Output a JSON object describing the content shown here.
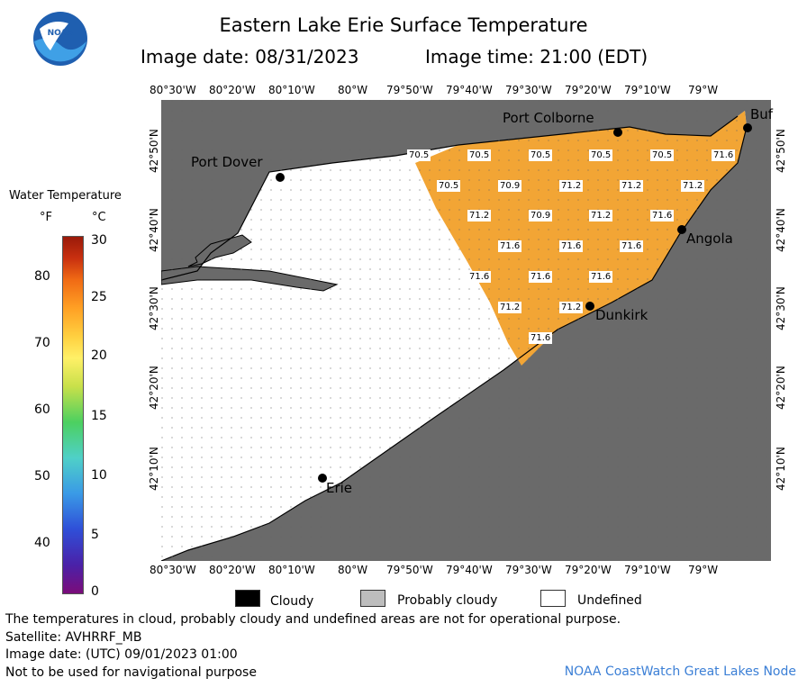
{
  "header": {
    "title": "Eastern Lake Erie Surface Temperature",
    "image_date": "Image date: 08/31/2023",
    "image_time": "Image time: 21:00 (EDT)",
    "logo_text": "NOAA"
  },
  "legend": {
    "title": "Water Temperature",
    "unit_f": "°F",
    "unit_c": "°C",
    "f_ticks": [
      "80",
      "70",
      "60",
      "50",
      "40"
    ],
    "c_ticks": [
      "30",
      "25",
      "20",
      "15",
      "10",
      "5",
      "0"
    ],
    "colormap": "purple-blue-cyan-green-yellow-orange-red"
  },
  "map": {
    "lon_labels": [
      "80°30'W",
      "80°20'W",
      "80°10'W",
      "80°W",
      "79°50'W",
      "79°40'W",
      "79°30'W",
      "79°20'W",
      "79°10'W",
      "79°W"
    ],
    "lat_labels": [
      "42°50'N",
      "42°40'N",
      "42°30'N",
      "42°20'N",
      "42°10'N"
    ],
    "cities": [
      {
        "name": "Port Colborne"
      },
      {
        "name": "Port Dover"
      },
      {
        "name": "Buf"
      },
      {
        "name": "Angola"
      },
      {
        "name": "Dunkirk"
      },
      {
        "name": "Erie"
      }
    ],
    "temperature_labels": [
      "70.5",
      "70.5",
      "70.5",
      "70.5",
      "70.5",
      "71.6",
      "70.5",
      "70.9",
      "71.2",
      "71.2",
      "71.2",
      "71.2",
      "70.9",
      "71.2",
      "71.6",
      "71.6",
      "71.6",
      "71.6",
      "71.6",
      "71.6",
      "71.6",
      "71.2",
      "71.2",
      "71.6"
    ],
    "colors": {
      "land": "#6a6a6a",
      "water_warm": "#f2a535",
      "undefined": "#ffffff",
      "grid": "#444444"
    }
  },
  "key": {
    "cloudy": "Cloudy",
    "probably_cloudy": "Probably cloudy",
    "undefined": "Undefined",
    "colors": {
      "cloudy": "#000000",
      "probably_cloudy": "#bdbdbd",
      "undefined": "#ffffff"
    }
  },
  "footer": {
    "disclaimer": "The temperatures in cloud, probably cloudy and undefined areas are not for operational purpose.",
    "satellite": "Satellite: AVHRRF_MB",
    "utc_date": "Image date: (UTC) 09/01/2023  01:00",
    "nav_warning": "Not to be used for navigational purpose",
    "node": "NOAA CoastWatch Great Lakes Node"
  }
}
